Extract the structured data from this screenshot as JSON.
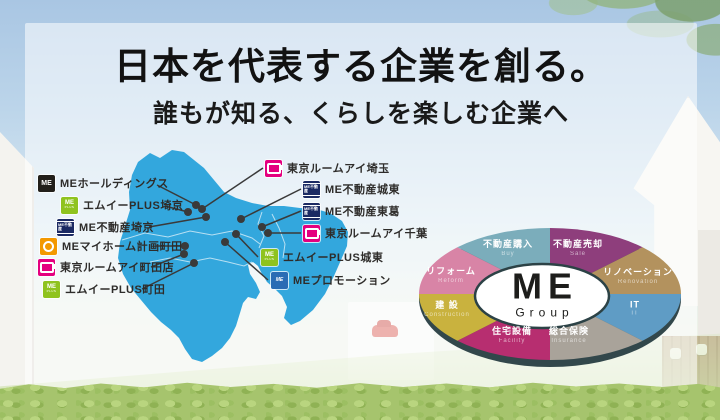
{
  "header": {
    "title": "日本を代表する企業を創る。",
    "subtitle": "誰もが知る、くらしを楽しむ企業へ"
  },
  "map": {
    "offices_left": [
      {
        "name": "MEホールディングス"
      },
      {
        "name": "エムイーPLUS埼京"
      },
      {
        "name": "ME不動産埼京"
      },
      {
        "name": "MEマイホーム計画町田"
      },
      {
        "name": "東京ルームアイ町田店"
      },
      {
        "name": "エムイーPLUS町田"
      }
    ],
    "offices_right": [
      {
        "name": "東京ルームアイ埼玉"
      },
      {
        "name": "ME不動産城東"
      },
      {
        "name": "ME不動産東葛"
      },
      {
        "name": "東京ルームアイ千葉"
      },
      {
        "name": "エムイーPLUS城東"
      },
      {
        "name": "MEプロモーション"
      }
    ]
  },
  "icons": {
    "holdings_label": "ME",
    "plus_label": "ME",
    "plus_sub": "PLUS",
    "fudosan_label": "ME不動産",
    "promotion_label": "ME"
  },
  "group_diagram": {
    "logo": "ME",
    "logo_sub": "Group",
    "segments": [
      {
        "ja": "不動産売却",
        "en": "Sale",
        "color": "#8e3e7c"
      },
      {
        "ja": "リノベーション",
        "en": "Renovation",
        "color": "#b3925e"
      },
      {
        "ja": "IT",
        "en": "IT",
        "color": "#5f9cc5"
      },
      {
        "ja": "総合保険",
        "en": "Insurance",
        "color": "#a9a39a"
      },
      {
        "ja": "住宅設備",
        "en": "Facility",
        "color": "#b72e70"
      },
      {
        "ja": "建 設",
        "en": "Construction",
        "color": "#c9b23e"
      },
      {
        "ja": "リフォーム",
        "en": "Reform",
        "color": "#d884a6"
      },
      {
        "ja": "不動産購入",
        "en": "Buy",
        "color": "#7badbb"
      }
    ]
  },
  "colors": {
    "map_blue": "#33a7dd",
    "leader_line": "#3a3a3a",
    "brand_black": "#221f1a",
    "brand_green": "#8fc31e",
    "brand_navy": "#1b2a63",
    "brand_orange": "#f39800",
    "brand_magenta": "#e4007f",
    "brand_blue": "#2a6cb4"
  }
}
